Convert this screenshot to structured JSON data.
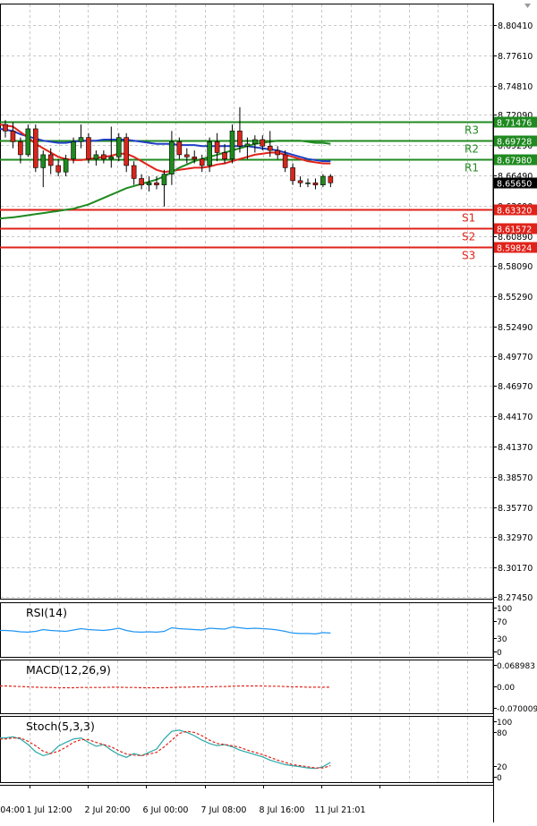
{
  "chart_data": {
    "type": "candlestick",
    "price_axis": {
      "ticks": [
        "8.80410",
        "8.77610",
        "8.74810",
        "8.72090",
        "8.69290",
        "8.66490",
        "8.63690",
        "8.60890",
        "8.58090",
        "8.55290",
        "8.52490",
        "8.49770",
        "8.46970",
        "8.44170",
        "8.41370",
        "8.38570",
        "8.35770",
        "8.32970",
        "8.30170",
        "8.27450"
      ],
      "ylim": [
        8.2745,
        8.8041
      ],
      "current_price": "8.65650"
    },
    "levels": [
      {
        "label": "R3",
        "value": 8.71476,
        "text": "8.71476",
        "color": "#1f8a1f"
      },
      {
        "label": "R2",
        "value": 8.69728,
        "text": "8.69728",
        "color": "#1f8a1f"
      },
      {
        "label": "R1",
        "value": 8.6798,
        "text": "8.67980",
        "color": "#1f8a1f"
      },
      {
        "label": "S1",
        "value": 8.6332,
        "text": "8.63320",
        "color": "#e0231a"
      },
      {
        "label": "S2",
        "value": 8.61572,
        "text": "8.61572",
        "color": "#e0231a"
      },
      {
        "label": "S3",
        "value": 8.59824,
        "text": "8.59824",
        "color": "#e0231a"
      }
    ],
    "time_axis": [
      "04:00",
      "1 Jul 12:00",
      "2 Jul 20:00",
      "6 Jul 00:00",
      "7 Jul 08:00",
      "8 Jul 16:00",
      "11 Jul 21:01"
    ],
    "candles": [
      [
        8.712,
        8.716,
        8.7,
        8.706
      ],
      [
        8.706,
        8.714,
        8.69,
        8.696
      ],
      [
        8.696,
        8.7,
        8.676,
        8.684
      ],
      [
        8.684,
        8.712,
        8.682,
        8.708
      ],
      [
        8.708,
        8.712,
        8.668,
        8.672
      ],
      [
        8.672,
        8.688,
        8.654,
        8.684
      ],
      [
        8.684,
        8.69,
        8.666,
        8.674
      ],
      [
        8.674,
        8.68,
        8.664,
        8.668
      ],
      [
        8.668,
        8.684,
        8.664,
        8.68
      ],
      [
        8.68,
        8.7,
        8.676,
        8.696
      ],
      [
        8.696,
        8.712,
        8.69,
        8.7
      ],
      [
        8.7,
        8.704,
        8.676,
        8.68
      ],
      [
        8.68,
        8.688,
        8.674,
        8.684
      ],
      [
        8.684,
        8.688,
        8.676,
        8.68
      ],
      [
        8.68,
        8.71,
        8.672,
        8.682
      ],
      [
        8.682,
        8.704,
        8.678,
        8.7
      ],
      [
        8.7,
        8.704,
        8.668,
        8.674
      ],
      [
        8.674,
        8.678,
        8.656,
        8.662
      ],
      [
        8.662,
        8.666,
        8.652,
        8.656
      ],
      [
        8.656,
        8.664,
        8.65,
        8.658
      ],
      [
        8.658,
        8.664,
        8.652,
        8.656
      ],
      [
        8.656,
        8.67,
        8.636,
        8.666
      ],
      [
        8.666,
        8.706,
        8.656,
        8.696
      ],
      [
        8.696,
        8.7,
        8.68,
        8.684
      ],
      [
        8.684,
        8.69,
        8.676,
        8.682
      ],
      [
        8.682,
        8.688,
        8.676,
        8.68
      ],
      [
        8.68,
        8.684,
        8.668,
        8.674
      ],
      [
        8.674,
        8.7,
        8.668,
        8.696
      ],
      [
        8.696,
        8.704,
        8.678,
        8.686
      ],
      [
        8.686,
        8.694,
        8.676,
        8.68
      ],
      [
        8.68,
        8.712,
        8.676,
        8.706
      ],
      [
        8.706,
        8.728,
        8.686,
        8.692
      ],
      [
        8.692,
        8.7,
        8.68,
        8.694
      ],
      [
        8.694,
        8.702,
        8.686,
        8.698
      ],
      [
        8.698,
        8.702,
        8.688,
        8.692
      ],
      [
        8.692,
        8.706,
        8.682,
        8.688
      ],
      [
        8.688,
        8.692,
        8.68,
        8.684
      ],
      [
        8.684,
        8.688,
        8.668,
        8.672
      ],
      [
        8.672,
        8.676,
        8.656,
        8.66
      ],
      [
        8.66,
        8.664,
        8.654,
        8.658
      ],
      [
        8.658,
        8.662,
        8.654,
        8.658
      ],
      [
        8.658,
        8.662,
        8.652,
        8.656
      ],
      [
        8.656,
        8.666,
        8.654,
        8.664
      ],
      [
        8.664,
        8.666,
        8.654,
        8.658
      ]
    ],
    "moving_averages": [
      {
        "color": "#1f3fc4",
        "values": [
          8.708,
          8.706,
          8.703,
          8.701,
          8.699,
          8.697,
          8.696,
          8.695,
          8.695,
          8.696,
          8.697,
          8.697,
          8.697,
          8.698,
          8.698,
          8.698,
          8.698,
          8.697,
          8.696,
          8.695,
          8.694,
          8.694,
          8.694,
          8.693,
          8.693,
          8.693,
          8.692,
          8.692,
          8.692,
          8.692,
          8.692,
          8.692,
          8.692,
          8.691,
          8.69,
          8.689,
          8.688,
          8.686,
          8.684,
          8.682,
          8.68,
          8.679,
          8.678,
          8.678
        ]
      },
      {
        "color": "#e0231a",
        "values": [
          8.712,
          8.71,
          8.705,
          8.7,
          8.694,
          8.69,
          8.686,
          8.682,
          8.68,
          8.679,
          8.679,
          8.68,
          8.681,
          8.682,
          8.683,
          8.685,
          8.685,
          8.682,
          8.678,
          8.674,
          8.67,
          8.668,
          8.669,
          8.67,
          8.671,
          8.672,
          8.672,
          8.673,
          8.675,
          8.676,
          8.678,
          8.68,
          8.682,
          8.684,
          8.685,
          8.686,
          8.686,
          8.684,
          8.682,
          8.68,
          8.678,
          8.677,
          8.676,
          8.676
        ]
      },
      {
        "color": "#1f8a1f",
        "values": [
          8.625,
          8.626,
          8.627,
          8.628,
          8.629,
          8.63,
          8.631,
          8.632,
          8.633,
          8.634,
          8.636,
          8.638,
          8.641,
          8.644,
          8.647,
          8.65,
          8.653,
          8.655,
          8.657,
          8.659,
          8.661,
          8.664,
          8.668,
          8.672,
          8.675,
          8.678,
          8.68,
          8.682,
          8.684,
          8.686,
          8.688,
          8.69,
          8.692,
          8.694,
          8.695,
          8.696,
          8.697,
          8.697,
          8.697,
          8.697,
          8.696,
          8.695,
          8.695,
          8.694
        ]
      }
    ],
    "indicators": [
      {
        "name": "RSI(14)",
        "ticks": [
          "100",
          "70",
          "30",
          "0"
        ],
        "ylim": [
          0,
          100
        ],
        "color": "#2196f3",
        "values": [
          48,
          47,
          45,
          44,
          46,
          50,
          48,
          47,
          46,
          49,
          52,
          50,
          49,
          48,
          50,
          53,
          48,
          45,
          44,
          45,
          44,
          46,
          54,
          52,
          51,
          50,
          49,
          53,
          52,
          51,
          56,
          54,
          52,
          53,
          52,
          51,
          49,
          46,
          42,
          41,
          41,
          40,
          43,
          42
        ]
      },
      {
        "name": "MACD(12,26,9)",
        "ticks": [
          "0.068983",
          "0.00",
          "-0.070009"
        ],
        "ylim": [
          -0.070009,
          0.068983
        ],
        "color": "#e0231a",
        "values": [
          0.001,
          0.0,
          -0.001,
          -0.002,
          -0.003,
          -0.004,
          -0.004,
          -0.005,
          -0.005,
          -0.005,
          -0.004,
          -0.004,
          -0.004,
          -0.004,
          -0.003,
          -0.003,
          -0.004,
          -0.004,
          -0.005,
          -0.005,
          -0.005,
          -0.005,
          -0.004,
          -0.003,
          -0.003,
          -0.002,
          -0.002,
          -0.002,
          -0.001,
          -0.001,
          0.0,
          0.001,
          0.001,
          0.001,
          0.001,
          0.0,
          0.0,
          -0.001,
          -0.002,
          -0.002,
          -0.003,
          -0.003,
          -0.003,
          -0.003
        ]
      },
      {
        "name": "Stoch(5,3,3)",
        "ticks": [
          "100",
          "80",
          "20",
          "0"
        ],
        "ylim": [
          0,
          100
        ],
        "series": [
          {
            "color": "#2aa7a7",
            "values": [
              70,
              72,
              68,
              58,
              45,
              38,
              42,
              55,
              62,
              68,
              70,
              62,
              55,
              58,
              48,
              40,
              35,
              42,
              38,
              44,
              50,
              68,
              82,
              84,
              80,
              74,
              66,
              60,
              56,
              58,
              54,
              48,
              44,
              40,
              36,
              30,
              26,
              22,
              20,
              18,
              16,
              15,
              18,
              26
            ]
          },
          {
            "color": "#e0231a",
            "values": [
              68,
              70,
              70,
              64,
              56,
              46,
              42,
              46,
              53,
              62,
              67,
              67,
              62,
              58,
              54,
              47,
              41,
              39,
              38,
              41,
              44,
              54,
              66,
              78,
              82,
              80,
              74,
              66,
              60,
              58,
              56,
              53,
              48,
              44,
              40,
              35,
              30,
              26,
              22,
              20,
              18,
              16,
              16,
              20
            ]
          }
        ]
      }
    ]
  }
}
